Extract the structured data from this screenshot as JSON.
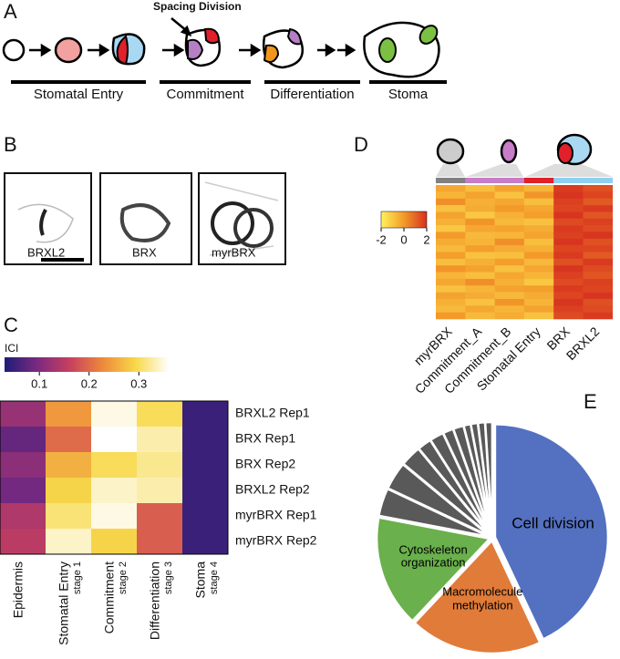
{
  "panel_labels": [
    "A",
    "B",
    "C",
    "D",
    "E"
  ],
  "diagram": {
    "annotation": "Spacing Division",
    "stages": [
      {
        "label": "Stomatal Entry",
        "color": "#d7191c"
      },
      {
        "label": "Commitment",
        "color": "#8e44ad"
      },
      {
        "label": "Differentiation",
        "color": "#e8841a"
      },
      {
        "label": "Stoma",
        "color": "#2e8b3a"
      }
    ]
  },
  "micrographs": {
    "labels": [
      "BRXL2",
      "BRX",
      "myrBRX"
    ]
  },
  "chart_data": [
    {
      "type": "heatmap",
      "colorbar_title": "ICI",
      "categories": [
        "Epidermis",
        "Stomatal Entry",
        "Commitment",
        "Differentiation",
        "Stoma"
      ],
      "category_sublabels": [
        null,
        "stage 1",
        "stage 2",
        "stage 3",
        "stage 4"
      ],
      "rows": [
        "BRXL2 Rep1",
        "BRX Rep1",
        "BRX Rep2",
        "BRXL2 Rep2",
        "myrBRX Rep1",
        "myrBRX Rep2"
      ],
      "values": [
        [
          0.12,
          0.24,
          0.35,
          0.3,
          0.05
        ],
        [
          0.08,
          0.2,
          0.36,
          0.33,
          0.05
        ],
        [
          0.11,
          0.26,
          0.3,
          0.32,
          0.05
        ],
        [
          0.09,
          0.29,
          0.34,
          0.33,
          0.05
        ],
        [
          0.14,
          0.31,
          0.35,
          0.19,
          0.05
        ],
        [
          0.15,
          0.34,
          0.29,
          0.19,
          0.05
        ]
      ],
      "clim": [
        0.03,
        0.36
      ],
      "cticks": [
        0.1,
        0.2,
        0.3
      ],
      "colormap": [
        "#1f1c78",
        "#7b2a80",
        "#c8405f",
        "#ee8a3a",
        "#f7d94a",
        "#ffffff"
      ]
    },
    {
      "type": "heatmap",
      "categories": [
        "myrBRX",
        "Commitment_A",
        "Commitment_B",
        "Stomatal Entry",
        "BRX",
        "BRXL2"
      ],
      "category_colors": [
        "#808080",
        "#c77dc7",
        "#c77dc7",
        "#e0202a",
        "#8fd0f0",
        "#8fd0f0"
      ],
      "values": [
        [
          -0.3,
          -0.8,
          -0.2,
          -0.6,
          1.8,
          1.4
        ],
        [
          -0.6,
          -0.2,
          -0.9,
          0.1,
          1.9,
          1.6
        ],
        [
          0.2,
          -0.5,
          -0.3,
          -0.8,
          1.7,
          1.2
        ],
        [
          -0.9,
          -0.4,
          0.0,
          -0.3,
          1.6,
          1.8
        ],
        [
          -0.2,
          -1.0,
          -0.5,
          -0.1,
          1.9,
          1.3
        ],
        [
          -0.5,
          0.1,
          -0.7,
          -0.9,
          1.5,
          1.7
        ],
        [
          -1.0,
          -0.3,
          -0.2,
          -0.4,
          1.8,
          1.5
        ],
        [
          0.0,
          -0.7,
          -0.6,
          -0.2,
          1.7,
          1.9
        ],
        [
          -0.4,
          -0.6,
          0.2,
          -0.8,
          1.9,
          1.4
        ],
        [
          -0.7,
          -0.1,
          -0.4,
          -0.5,
          1.6,
          1.6
        ],
        [
          -0.1,
          -0.9,
          -0.8,
          0.0,
          1.8,
          1.2
        ],
        [
          -0.8,
          -0.5,
          -0.1,
          -0.7,
          1.4,
          1.8
        ],
        [
          0.1,
          -0.2,
          -0.9,
          -0.3,
          1.9,
          1.5
        ],
        [
          -0.6,
          -0.8,
          -0.3,
          -0.6,
          1.7,
          1.3
        ],
        [
          -0.3,
          0.2,
          -0.5,
          -1.0,
          1.5,
          1.7
        ],
        [
          -0.9,
          -0.6,
          -0.2,
          -0.1,
          1.8,
          1.6
        ],
        [
          -0.2,
          -0.4,
          -0.7,
          -0.4,
          1.6,
          1.9
        ],
        [
          -0.5,
          -0.9,
          0.1,
          -0.6,
          1.9,
          1.4
        ],
        [
          -0.7,
          -0.3,
          -0.6,
          -0.2,
          1.7,
          1.5
        ],
        [
          0.0,
          -0.7,
          -0.4,
          -0.9,
          1.5,
          1.8
        ]
      ],
      "clim": [
        -2,
        2
      ],
      "cticks": [
        -2,
        0,
        2
      ],
      "colormap": [
        "#fff35a",
        "#f39a2a",
        "#d7301f"
      ]
    },
    {
      "type": "pie",
      "categories": [
        "Cell division",
        "Macromolecule methylation",
        "Cytoskeleton organization",
        null,
        null,
        null,
        null,
        null,
        null,
        null,
        null,
        null,
        null,
        null
      ],
      "values": [
        43,
        19,
        16,
        4,
        4,
        3,
        2,
        2,
        1.5,
        1.5,
        1,
        1,
        1,
        1
      ],
      "colors": [
        "#5470c0",
        "#e07b39",
        "#6ab04c",
        "#595959",
        "#595959",
        "#595959",
        "#595959",
        "#595959",
        "#595959",
        "#595959",
        "#595959",
        "#595959",
        "#595959",
        "#595959"
      ]
    }
  ]
}
